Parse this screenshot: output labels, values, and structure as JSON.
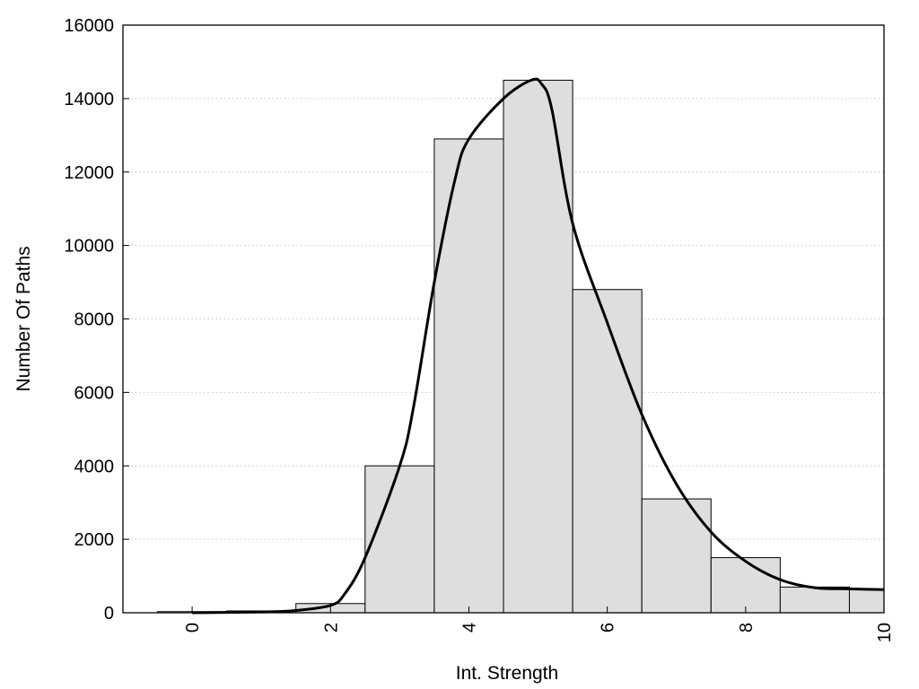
{
  "chart_data": {
    "type": "bar",
    "title": "",
    "xlabel": "Int. Strength",
    "ylabel": "Number Of Paths",
    "xlim": [
      -1,
      10
    ],
    "ylim": [
      0,
      16000
    ],
    "x_ticks": [
      "0",
      "2",
      "4",
      "6",
      "8",
      "10"
    ],
    "y_ticks": [
      "0",
      "2000",
      "4000",
      "6000",
      "8000",
      "10000",
      "12000",
      "14000",
      "16000"
    ],
    "grid": "horizontal dotted",
    "legend": "none",
    "bar_width": 1,
    "categories": [
      0,
      1,
      2,
      3,
      4,
      5,
      6,
      7,
      8,
      9,
      10
    ],
    "values": [
      30,
      50,
      250,
      4000,
      12900,
      14500,
      8800,
      3100,
      1500,
      700,
      650
    ],
    "series": [
      {
        "type": "line",
        "x": [
          0,
          1,
          1.5,
          2,
          2.2,
          2.5,
          3,
          3.2,
          3.5,
          3.8,
          4,
          4.5,
          4.9,
          5.05,
          5.2,
          5.5,
          6,
          6.5,
          7,
          7.5,
          8,
          8.5,
          9,
          9.5,
          10
        ],
        "y": [
          0,
          20,
          60,
          200,
          500,
          1500,
          4000,
          5600,
          9000,
          11800,
          12900,
          14000,
          14500,
          14400,
          13700,
          10600,
          7900,
          5400,
          3500,
          2200,
          1400,
          900,
          680,
          650,
          630
        ]
      }
    ],
    "colors": {
      "bar_fill": "#dedede",
      "bar_stroke": "#000000",
      "line": "#000000",
      "grid": "#c8c8c8"
    }
  }
}
